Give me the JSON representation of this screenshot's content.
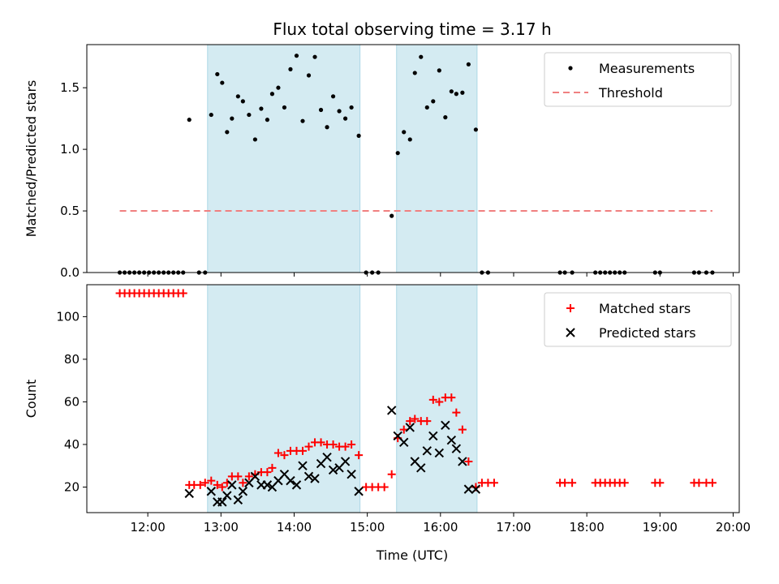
{
  "figure": {
    "title": "Flux total observing time = 3.17 h",
    "xlabel": "Time (UTC)"
  },
  "colors": {
    "measurements": "#000000",
    "threshold": "#f08080",
    "matched": "#ff0000",
    "predicted": "#000000",
    "band": "#add8e6"
  },
  "chart_data": [
    {
      "type": "scatter",
      "panel": "top",
      "ylabel": "Matched/Predicted stars",
      "xlim": [
        "11:10",
        "20:05"
      ],
      "ylim": [
        0,
        1.85
      ],
      "xticks": [
        "12:00",
        "13:00",
        "14:00",
        "15:00",
        "16:00",
        "17:00",
        "18:00",
        "19:00",
        "20:00"
      ],
      "yticks": [
        0.0,
        0.5,
        1.0,
        1.5
      ],
      "ytick_labels": [
        "0.0",
        "0.5",
        "1.0",
        "1.5"
      ],
      "legend_position": "top-right",
      "shaded_intervals": [
        [
          "12:49",
          "14:54"
        ],
        [
          "15:24",
          "16:30"
        ]
      ],
      "series": [
        {
          "name": "Measurements",
          "marker": "dot",
          "points": [
            [
              "11:37",
              0
            ],
            [
              "11:41",
              0
            ],
            [
              "11:45",
              0
            ],
            [
              "11:49",
              0
            ],
            [
              "11:53",
              0
            ],
            [
              "11:57",
              0
            ],
            [
              "12:01",
              0
            ],
            [
              "12:05",
              0
            ],
            [
              "12:09",
              0
            ],
            [
              "12:13",
              0
            ],
            [
              "12:17",
              0
            ],
            [
              "12:21",
              0
            ],
            [
              "12:25",
              0
            ],
            [
              "12:29",
              0
            ],
            [
              "12:34",
              1.24
            ],
            [
              "12:42",
              0
            ],
            [
              "12:47",
              0
            ],
            [
              "12:52",
              1.28
            ],
            [
              "12:57",
              1.61
            ],
            [
              "13:01",
              1.54
            ],
            [
              "13:05",
              1.14
            ],
            [
              "13:09",
              1.25
            ],
            [
              "13:14",
              1.43
            ],
            [
              "13:18",
              1.39
            ],
            [
              "13:23",
              1.28
            ],
            [
              "13:28",
              1.08
            ],
            [
              "13:33",
              1.33
            ],
            [
              "13:38",
              1.24
            ],
            [
              "13:42",
              1.45
            ],
            [
              "13:47",
              1.5
            ],
            [
              "13:52",
              1.34
            ],
            [
              "13:57",
              1.65
            ],
            [
              "14:02",
              1.76
            ],
            [
              "14:07",
              1.23
            ],
            [
              "14:12",
              1.6
            ],
            [
              "14:17",
              1.75
            ],
            [
              "14:22",
              1.32
            ],
            [
              "14:27",
              1.18
            ],
            [
              "14:32",
              1.43
            ],
            [
              "14:37",
              1.31
            ],
            [
              "14:42",
              1.25
            ],
            [
              "14:47",
              1.34
            ],
            [
              "14:53",
              1.11
            ],
            [
              "14:59",
              0
            ],
            [
              "15:04",
              0
            ],
            [
              "15:09",
              0
            ],
            [
              "15:20",
              0.46
            ],
            [
              "15:25",
              0.97
            ],
            [
              "15:30",
              1.14
            ],
            [
              "15:35",
              1.08
            ],
            [
              "15:39",
              1.62
            ],
            [
              "15:44",
              1.75
            ],
            [
              "15:49",
              1.34
            ],
            [
              "15:54",
              1.39
            ],
            [
              "15:59",
              1.64
            ],
            [
              "16:04",
              1.26
            ],
            [
              "16:09",
              1.47
            ],
            [
              "16:13",
              1.45
            ],
            [
              "16:18",
              1.46
            ],
            [
              "16:23",
              1.69
            ],
            [
              "16:29",
              1.16
            ],
            [
              "16:34",
              0
            ],
            [
              "16:39",
              0
            ],
            [
              "17:38",
              0
            ],
            [
              "17:42",
              0
            ],
            [
              "17:48",
              0
            ],
            [
              "18:07",
              0
            ],
            [
              "18:11",
              0
            ],
            [
              "18:15",
              0
            ],
            [
              "18:19",
              0
            ],
            [
              "18:23",
              0
            ],
            [
              "18:27",
              0
            ],
            [
              "18:31",
              0
            ],
            [
              "18:56",
              0
            ],
            [
              "19:00",
              0
            ],
            [
              "19:28",
              0
            ],
            [
              "19:32",
              0
            ],
            [
              "19:38",
              0
            ],
            [
              "19:43",
              0
            ]
          ]
        },
        {
          "name": "Threshold",
          "marker": "dashed-line",
          "points": [
            [
              "11:37",
              0.5
            ],
            [
              "19:43",
              0.5
            ]
          ]
        }
      ]
    },
    {
      "type": "scatter",
      "panel": "bottom",
      "ylabel": "Count",
      "xlabel": "Time (UTC)",
      "xlim": [
        "11:10",
        "20:05"
      ],
      "ylim": [
        8,
        115
      ],
      "xticks": [
        "12:00",
        "13:00",
        "14:00",
        "15:00",
        "16:00",
        "17:00",
        "18:00",
        "19:00",
        "20:00"
      ],
      "yticks": [
        20,
        40,
        60,
        80,
        100
      ],
      "ytick_labels": [
        "20",
        "40",
        "60",
        "80",
        "100"
      ],
      "legend_position": "top-right",
      "shaded_intervals": [
        [
          "12:49",
          "14:54"
        ],
        [
          "15:24",
          "16:30"
        ]
      ],
      "series": [
        {
          "name": "Matched stars",
          "marker": "plus",
          "points": [
            [
              "11:37",
              111
            ],
            [
              "11:41",
              111
            ],
            [
              "11:45",
              111
            ],
            [
              "11:49",
              111
            ],
            [
              "11:53",
              111
            ],
            [
              "11:57",
              111
            ],
            [
              "12:01",
              111
            ],
            [
              "12:05",
              111
            ],
            [
              "12:09",
              111
            ],
            [
              "12:13",
              111
            ],
            [
              "12:17",
              111
            ],
            [
              "12:21",
              111
            ],
            [
              "12:25",
              111
            ],
            [
              "12:29",
              111
            ],
            [
              "12:34",
              21
            ],
            [
              "12:38",
              21
            ],
            [
              "12:43",
              21
            ],
            [
              "12:47",
              22
            ],
            [
              "12:52",
              23
            ],
            [
              "12:57",
              21
            ],
            [
              "13:01",
              20
            ],
            [
              "13:05",
              22
            ],
            [
              "13:09",
              25
            ],
            [
              "13:14",
              25
            ],
            [
              "13:18",
              22
            ],
            [
              "13:23",
              25
            ],
            [
              "13:28",
              26
            ],
            [
              "13:33",
              27
            ],
            [
              "13:38",
              27
            ],
            [
              "13:42",
              29
            ],
            [
              "13:47",
              36
            ],
            [
              "13:52",
              35
            ],
            [
              "13:57",
              37
            ],
            [
              "14:02",
              37
            ],
            [
              "14:07",
              37
            ],
            [
              "14:12",
              39
            ],
            [
              "14:17",
              41
            ],
            [
              "14:22",
              41
            ],
            [
              "14:27",
              40
            ],
            [
              "14:32",
              40
            ],
            [
              "14:37",
              39
            ],
            [
              "14:42",
              39
            ],
            [
              "14:47",
              40
            ],
            [
              "14:53",
              35
            ],
            [
              "14:59",
              20
            ],
            [
              "15:04",
              20
            ],
            [
              "15:09",
              20
            ],
            [
              "15:14",
              20
            ],
            [
              "15:20",
              26
            ],
            [
              "15:25",
              43
            ],
            [
              "15:30",
              47
            ],
            [
              "15:35",
              51
            ],
            [
              "15:39",
              52
            ],
            [
              "15:44",
              51
            ],
            [
              "15:49",
              51
            ],
            [
              "15:54",
              61
            ],
            [
              "15:59",
              60
            ],
            [
              "16:04",
              62
            ],
            [
              "16:09",
              62
            ],
            [
              "16:13",
              55
            ],
            [
              "16:18",
              47
            ],
            [
              "16:23",
              32
            ],
            [
              "16:29",
              20
            ],
            [
              "16:34",
              22
            ],
            [
              "16:39",
              22
            ],
            [
              "16:44",
              22
            ],
            [
              "17:38",
              22
            ],
            [
              "17:42",
              22
            ],
            [
              "17:48",
              22
            ],
            [
              "18:07",
              22
            ],
            [
              "18:11",
              22
            ],
            [
              "18:15",
              22
            ],
            [
              "18:19",
              22
            ],
            [
              "18:23",
              22
            ],
            [
              "18:27",
              22
            ],
            [
              "18:31",
              22
            ],
            [
              "18:56",
              22
            ],
            [
              "19:00",
              22
            ],
            [
              "19:28",
              22
            ],
            [
              "19:32",
              22
            ],
            [
              "19:38",
              22
            ],
            [
              "19:43",
              22
            ]
          ]
        },
        {
          "name": "Predicted stars",
          "marker": "x",
          "points": [
            [
              "12:34",
              17
            ],
            [
              "12:52",
              18
            ],
            [
              "12:57",
              13
            ],
            [
              "13:01",
              13
            ],
            [
              "13:05",
              16
            ],
            [
              "13:09",
              21
            ],
            [
              "13:14",
              14
            ],
            [
              "13:18",
              18
            ],
            [
              "13:23",
              22
            ],
            [
              "13:28",
              25
            ],
            [
              "13:33",
              21
            ],
            [
              "13:38",
              21
            ],
            [
              "13:42",
              20
            ],
            [
              "13:47",
              23
            ],
            [
              "13:52",
              26
            ],
            [
              "13:57",
              23
            ],
            [
              "14:02",
              21
            ],
            [
              "14:07",
              30
            ],
            [
              "14:12",
              25
            ],
            [
              "14:17",
              24
            ],
            [
              "14:22",
              31
            ],
            [
              "14:27",
              34
            ],
            [
              "14:32",
              28
            ],
            [
              "14:37",
              29
            ],
            [
              "14:42",
              32
            ],
            [
              "14:47",
              26
            ],
            [
              "14:53",
              18
            ],
            [
              "15:20",
              56
            ],
            [
              "15:25",
              44
            ],
            [
              "15:30",
              41
            ],
            [
              "15:35",
              48
            ],
            [
              "15:39",
              32
            ],
            [
              "15:44",
              29
            ],
            [
              "15:49",
              37
            ],
            [
              "15:54",
              44
            ],
            [
              "15:59",
              36
            ],
            [
              "16:04",
              49
            ],
            [
              "16:09",
              42
            ],
            [
              "16:13",
              38
            ],
            [
              "16:18",
              32
            ],
            [
              "16:23",
              19
            ],
            [
              "16:29",
              19
            ]
          ]
        }
      ]
    }
  ]
}
